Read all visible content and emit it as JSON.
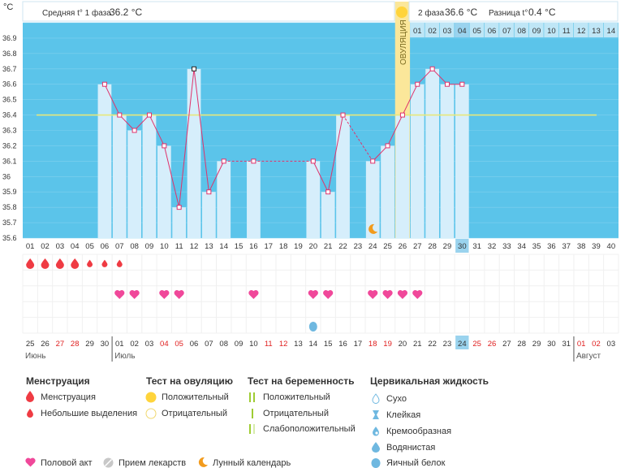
{
  "header": {
    "phase1_label": "Средняя t° 1 фаза",
    "phase1_value": "36.2 °C",
    "phase2_label": "2 фаза",
    "phase2_value": "36.6 °C",
    "diff_label": "Разница t°",
    "diff_value": "0.4 °C",
    "unit": "°C",
    "ovulation_label": "ОВУЛЯЦИЯ"
  },
  "colors": {
    "blue_bg": "#5bc4ea",
    "bar": "#d6eefb",
    "line": "#e0326b",
    "coverline": "#e8e87a",
    "ovulation": "#fbe79a",
    "ovulation_dot": "#ffd43b",
    "heart": "#f0489a",
    "drop": "#ef3b43",
    "holiday": "#e02020",
    "today": "#9ad3ee"
  },
  "chart_data": {
    "type": "line",
    "ylim": [
      35.6,
      37.0
    ],
    "yticks": [
      "35.6",
      "35.7",
      "35.8",
      "35.9",
      "36",
      "36.1",
      "36.2",
      "36.3",
      "36.4",
      "36.5",
      "36.6",
      "36.7",
      "36.8",
      "36.9"
    ],
    "cycle_days": [
      "01",
      "02",
      "03",
      "04",
      "05",
      "06",
      "07",
      "08",
      "09",
      "10",
      "11",
      "12",
      "13",
      "14",
      "15",
      "16",
      "17",
      "18",
      "19",
      "20",
      "21",
      "22",
      "23",
      "24",
      "25",
      "26",
      "27",
      "28",
      "29",
      "30",
      "31",
      "32",
      "33",
      "34",
      "35",
      "36",
      "37",
      "38",
      "39",
      "40"
    ],
    "phase2_days": [
      "01",
      "02",
      "03",
      "04",
      "05",
      "06",
      "07",
      "08",
      "09",
      "10",
      "11",
      "12",
      "13",
      "14"
    ],
    "temperatures": [
      null,
      null,
      null,
      null,
      null,
      36.6,
      36.4,
      36.3,
      36.4,
      36.2,
      35.8,
      36.7,
      35.9,
      36.1,
      null,
      36.1,
      null,
      null,
      null,
      36.1,
      35.9,
      36.4,
      null,
      36.1,
      36.2,
      36.4,
      36.6,
      36.7,
      36.6,
      36.6,
      null,
      null,
      null,
      null,
      null,
      null,
      null,
      null,
      null,
      null
    ],
    "coverline": 36.4,
    "ovulation_day": 26,
    "today_day": 30,
    "moon_day": 24,
    "menstruation": [
      "big",
      "big",
      "big",
      "big",
      "small",
      "small",
      "small"
    ],
    "intercourse_days": [
      7,
      8,
      10,
      11,
      16,
      20,
      21,
      24,
      25,
      26,
      27
    ],
    "cervical_day": 20,
    "dates": [
      "25",
      "26",
      "27",
      "28",
      "29",
      "30",
      "01",
      "02",
      "03",
      "04",
      "05",
      "06",
      "07",
      "08",
      "09",
      "10",
      "11",
      "12",
      "13",
      "14",
      "15",
      "16",
      "17",
      "18",
      "19",
      "20",
      "21",
      "22",
      "23",
      "24",
      "25",
      "26",
      "27",
      "28",
      "29",
      "30",
      "31",
      "01",
      "02",
      "03"
    ],
    "date_red": [
      false,
      false,
      true,
      true,
      false,
      false,
      false,
      false,
      false,
      true,
      true,
      false,
      false,
      false,
      false,
      false,
      true,
      true,
      false,
      false,
      false,
      false,
      false,
      true,
      true,
      false,
      false,
      false,
      false,
      false,
      true,
      true,
      false,
      false,
      false,
      false,
      false,
      true,
      true,
      false
    ],
    "months": [
      {
        "label": "Июнь",
        "start": 1
      },
      {
        "label": "Июль",
        "start": 7
      },
      {
        "label": "Август",
        "start": 38
      }
    ]
  },
  "legend": {
    "menstruation_title": "Менструация",
    "menstruation": "Менструация",
    "spotting": "Небольшие выделения",
    "ovulation_test_title": "Тест на овуляцию",
    "positive": "Положительный",
    "negative": "Отрицательный",
    "pregnancy_test_title": "Тест на беременность",
    "preg_positive": "Положительный",
    "preg_negative": "Отрицательный",
    "preg_weak": "Слабоположительный",
    "cervical_title": "Цервикальная жидкость",
    "dry": "Сухо",
    "sticky": "Клейкая",
    "creamy": "Кремообразная",
    "watery": "Водянистая",
    "eggwhite": "Яичный белок",
    "intercourse": "Половой акт",
    "medication": "Прием лекарств",
    "lunar": "Лунный календарь"
  }
}
